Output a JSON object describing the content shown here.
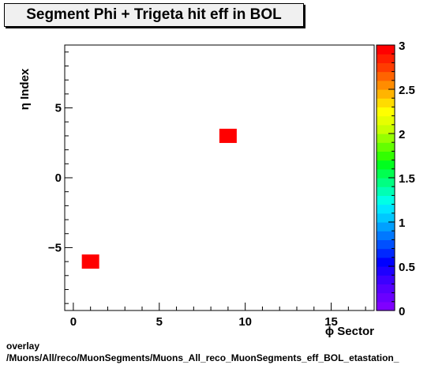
{
  "chart_data": {
    "type": "heatmap",
    "title": "Segment Phi + Trigeta hit eff in BOL",
    "xlabel": "ϕ Sector",
    "ylabel": "η Index",
    "xlim": [
      -0.5,
      17.5
    ],
    "ylim": [
      -9.5,
      9.5
    ],
    "x_ticks": [
      0,
      5,
      10,
      15
    ],
    "y_ticks": [
      -5,
      0,
      5
    ],
    "cells": [
      {
        "x": 1,
        "y": -6,
        "value": 3
      },
      {
        "x": 9,
        "y": 3,
        "value": 3
      }
    ],
    "colorbar": {
      "min": 0,
      "max": 3,
      "ticks": [
        "0",
        "0.5",
        "1",
        "1.5",
        "2",
        "2.5",
        "3"
      ],
      "colors": [
        "#7f00ff",
        "#6a00ff",
        "#5500ff",
        "#3c00ff",
        "#1e00ff",
        "#0000ff",
        "#0028ff",
        "#0050ff",
        "#0078ff",
        "#00a0ff",
        "#00c8ff",
        "#00e6ff",
        "#00ffe6",
        "#00ffb4",
        "#00ff82",
        "#00ff50",
        "#00ff1e",
        "#32ff00",
        "#64ff00",
        "#96ff00",
        "#c8ff00",
        "#e6ff00",
        "#ffff00",
        "#ffdc00",
        "#ffb400",
        "#ff8c00",
        "#ff6400",
        "#ff3c00",
        "#ff1e00",
        "#ff0000"
      ]
    }
  },
  "footer": {
    "line1": "overlay",
    "line2": "/Muons/All/reco/MuonSegments/Muons_All_reco_MuonSegments_eff_BOL_etastation_"
  }
}
